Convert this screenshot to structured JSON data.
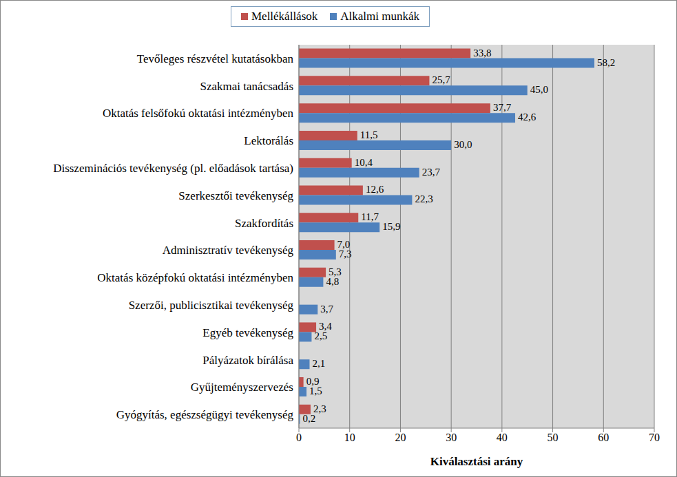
{
  "chart_data": {
    "type": "bar",
    "orientation": "horizontal",
    "categories": [
      "Tevőleges részvétel kutatásokban",
      "Szakmai tanácsadás",
      "Oktatás felsőfokú oktatási intézményben",
      "Lektorálás",
      "Disszeminációs tevékenység (pl. előadások tartása)",
      "Szerkesztői tevékenység",
      "Szakfordítás",
      "Adminisztratív tevékenység",
      "Oktatás középfokú oktatási intézményben",
      "Szerzői, publicisztikai tevékenység",
      "Egyéb tevékenység",
      "Pályázatok bírálása",
      "Gyűjteményszervezés",
      "Gyógyítás, egészségügyi tevékenység"
    ],
    "series": [
      {
        "name": "Mellékállások",
        "color": "#c0504d",
        "values": [
          33.8,
          25.7,
          37.7,
          11.5,
          10.4,
          12.6,
          11.7,
          7.0,
          5.3,
          null,
          3.4,
          null,
          0.9,
          2.3
        ],
        "value_labels": [
          "33,8",
          "25,7",
          "37,7",
          "11,5",
          "10,4",
          "12,6",
          "11,7",
          "7,0",
          "5,3",
          null,
          "3,4",
          null,
          "0,9",
          "2,3"
        ]
      },
      {
        "name": "Alkalmi munkák",
        "color": "#4f81bd",
        "values": [
          58.2,
          45.0,
          42.6,
          30.0,
          23.7,
          22.3,
          15.9,
          7.3,
          4.8,
          3.7,
          2.5,
          2.1,
          1.5,
          0.2
        ],
        "value_labels": [
          "58,2",
          "45,0",
          "42,6",
          "30,0",
          "23,7",
          "22,3",
          "15,9",
          "7,3",
          "4,8",
          "3,7",
          "2,5",
          "2,1",
          "1,5",
          "0,2"
        ]
      }
    ],
    "x_label": "Kiválasztási arány",
    "xlim": [
      0,
      70
    ],
    "xticks": [
      0,
      10,
      20,
      30,
      40,
      50,
      60,
      70
    ],
    "grid": true,
    "legend": "top",
    "data_labels": true
  }
}
